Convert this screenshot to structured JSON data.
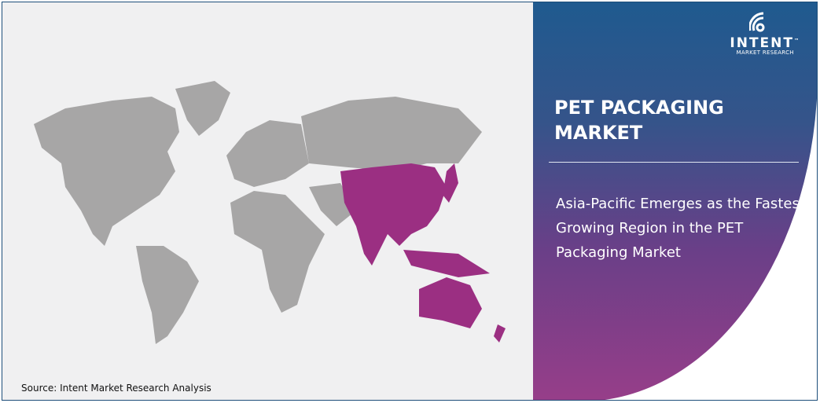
{
  "logo": {
    "name": "INTENT",
    "trademark": "™",
    "subtitle": "MARKET RESEARCH"
  },
  "title": "PET PACKAGING MARKET",
  "headline": "Asia-Pacific Emerges as the Fastest Growing Region in the PET Packaging Market",
  "source": "Source: Intent Market Research Analysis",
  "colors": {
    "map_base": "#a7a6a6",
    "highlight": "#9b2f82",
    "panel_top": "#1f5a8f",
    "panel_bottom": "#973e89",
    "background": "#f0f0f1"
  },
  "highlight_region": "Asia-Pacific"
}
